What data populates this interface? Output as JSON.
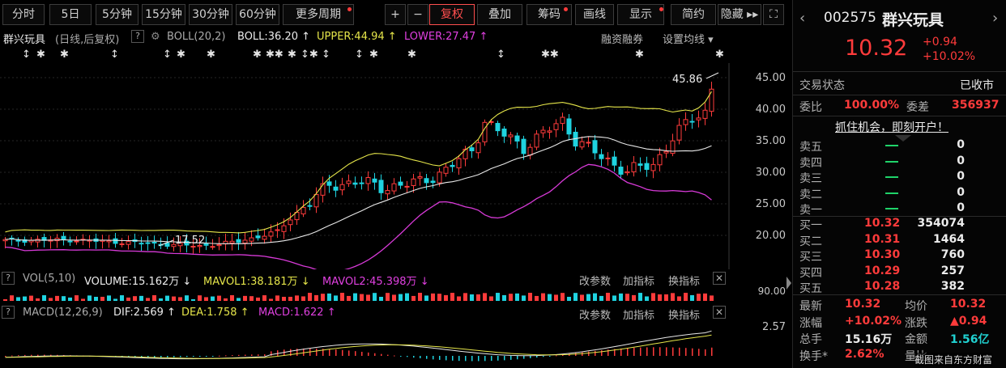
{
  "toolbar": {
    "buttons": [
      "分时",
      "5日",
      "5分钟",
      "15分钟",
      "30分钟",
      "60分钟",
      "更多周期",
      "+",
      "−",
      "复权",
      "叠加",
      "筹码",
      "画线",
      "显示",
      "简约",
      "隐藏 ▸▸",
      "⛶"
    ]
  },
  "main_header": {
    "stock": "群兴玩具",
    "mode": "(日线,后复权)",
    "help": "?",
    "boll_name": "BOLL(20,2)",
    "boll": "BOLL:36.20 ↑",
    "upper": "UPPER:44.94 ↑",
    "lower": "LOWER:27.47 ↑",
    "margin": "融资融券",
    "ma_setting": "设置均线 ▾"
  },
  "stars": [
    "↕",
    "✱",
    "✱",
    "↕",
    "↕",
    "✱",
    "✱",
    "✱",
    "✱✱",
    "✱",
    "↕✱",
    "↕",
    "↕",
    "✱",
    "✱",
    "↕",
    "✱✱",
    "✱",
    "✱"
  ],
  "price_labels": {
    "high": "45.86",
    "low": "17.52"
  },
  "y_axis": [
    "45.00",
    "40.00",
    "35.00",
    "30.00",
    "25.00",
    "20.00"
  ],
  "vol_header": {
    "name": "VOL(5,10)",
    "volume": "VOLUME:15.162万 ↓",
    "mavol1": "MAVOL1:38.181万 ↓",
    "mavol2": "MAVOL2:45.398万 ↓",
    "params": "改参数",
    "add": "加指标",
    "switch": "换指标",
    "close": "✕",
    "axis": "90.00"
  },
  "macd_header": {
    "name": "MACD(12,26,9)",
    "dif": "DIF:2.569 ↑",
    "dea": "DEA:1.758 ↑",
    "macd": "MACD:1.622 ↑",
    "params": "改参数",
    "add": "加指标",
    "switch": "换指标",
    "close": "✕",
    "axis": "2.57"
  },
  "side": {
    "code": "002575",
    "name": "群兴玩具",
    "price": "10.32",
    "change": "+0.94",
    "change_pct": "+10.02%",
    "status_label": "交易状态",
    "status": "已收市",
    "weibi_label": "委比",
    "weibi": "100.00%",
    "weicha_label": "委差",
    "weicha": "356937",
    "promo": "抓住机会，即刻开户！",
    "sells": [
      {
        "label": "卖五",
        "price": "—",
        "vol": "0"
      },
      {
        "label": "卖四",
        "price": "—",
        "vol": "0"
      },
      {
        "label": "卖三",
        "price": "—",
        "vol": "0"
      },
      {
        "label": "卖二",
        "price": "—",
        "vol": "0"
      },
      {
        "label": "卖一",
        "price": "—",
        "vol": "0"
      }
    ],
    "buys": [
      {
        "label": "买一",
        "price": "10.32",
        "vol": "354074"
      },
      {
        "label": "买二",
        "price": "10.31",
        "vol": "1464"
      },
      {
        "label": "买三",
        "price": "10.30",
        "vol": "760"
      },
      {
        "label": "买四",
        "price": "10.29",
        "vol": "257"
      },
      {
        "label": "买五",
        "price": "10.28",
        "vol": "382"
      }
    ],
    "stats": [
      {
        "l1": "最新",
        "v1": "10.32",
        "l2": "均价",
        "v2": "10.32"
      },
      {
        "l1": "涨幅",
        "v1": "+10.02%",
        "l2": "涨跌",
        "v2": "▲0.94"
      },
      {
        "l1": "总手",
        "v1": "15.16万",
        "l2": "金额",
        "v2": "1.56亿"
      },
      {
        "l1": "换手*",
        "v1": "2.62%",
        "l2": "量比",
        "v2": ""
      }
    ],
    "watermark": "截图来自东方财富"
  },
  "colors": {
    "up": "#ff3b3b",
    "down": "#1fd3e0",
    "boll_mid": "#e8e8e8",
    "upper": "#e6e64a",
    "lower": "#d83ad8"
  }
}
